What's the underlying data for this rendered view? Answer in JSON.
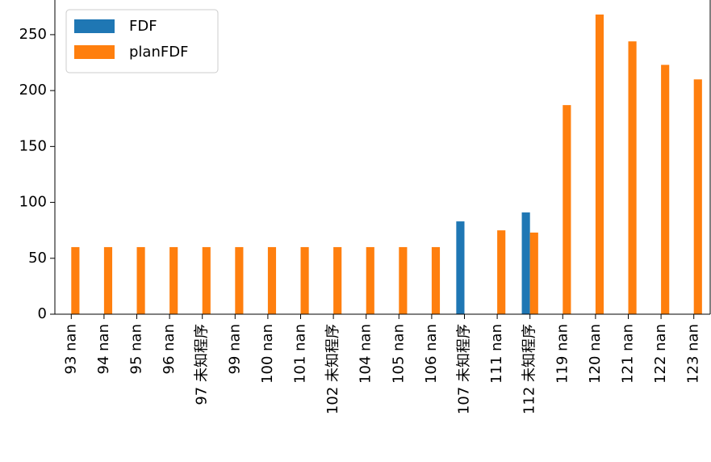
{
  "chart_data": {
    "type": "bar",
    "categories": [
      "93 nan",
      "94 nan",
      "95 nan",
      "96 nan",
      "97 未知程序",
      "99 nan",
      "100 nan",
      "101 nan",
      "102 未知程序",
      "104 nan",
      "105 nan",
      "106 nan",
      "107 未知程序",
      "111 nan",
      "112 未知程序",
      "119 nan",
      "120 nan",
      "121 nan",
      "122 nan",
      "123 nan"
    ],
    "series": [
      {
        "name": "FDF",
        "color": "#1f77b4",
        "values": [
          null,
          null,
          null,
          null,
          null,
          null,
          null,
          null,
          null,
          null,
          null,
          null,
          83,
          null,
          91,
          null,
          null,
          null,
          null,
          null
        ]
      },
      {
        "name": "planFDF",
        "color": "#ff7f0e",
        "values": [
          60,
          60,
          60,
          60,
          60,
          60,
          60,
          60,
          60,
          60,
          60,
          60,
          null,
          75,
          73,
          187,
          268,
          244,
          223,
          210
        ]
      }
    ],
    "ylim": [
      0,
      281
    ],
    "yticks": [
      0,
      50,
      100,
      150,
      200,
      250
    ],
    "legend": "upper left"
  }
}
